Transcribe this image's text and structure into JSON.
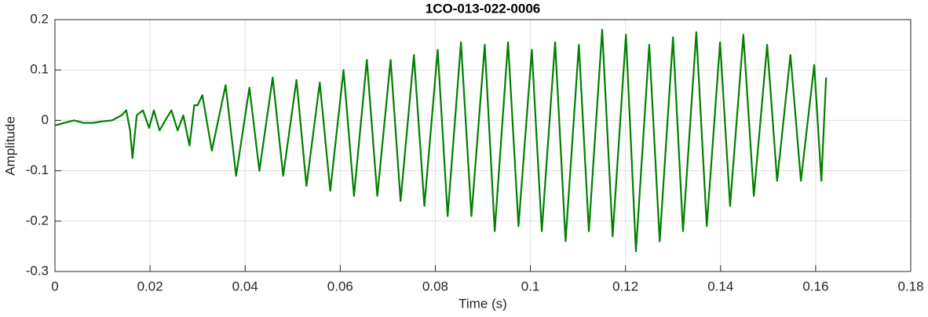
{
  "chart_data": {
    "type": "line",
    "title": "1CO-013-022-0006",
    "xlabel": "Time (s)",
    "ylabel": "Amplitude",
    "xlim": [
      0,
      0.18
    ],
    "xticks": [
      0,
      0.02,
      0.04,
      0.06,
      0.08,
      0.1,
      0.12,
      0.14,
      0.16,
      0.18
    ],
    "ylim": [
      -0.3,
      0.2
    ],
    "yticks": [
      -0.3,
      -0.2,
      -0.1,
      0,
      0.1,
      0.2
    ],
    "grid": true,
    "series": [
      {
        "color": "#008000",
        "x": [
          0,
          0.002,
          0.004,
          0.006,
          0.008,
          0.01,
          0.012,
          0.014,
          0.015,
          0.0158,
          0.0163,
          0.0172,
          0.0185,
          0.0198,
          0.0208,
          0.022,
          0.0232,
          0.0245,
          0.0258,
          0.027,
          0.0283,
          0.0293,
          0.03,
          0.031,
          0.033,
          0.0359,
          0.0381,
          0.0409,
          0.043,
          0.0458,
          0.048,
          0.0508,
          0.0529,
          0.0557,
          0.0579,
          0.0607,
          0.0629,
          0.0656,
          0.0678,
          0.0706,
          0.0727,
          0.0755,
          0.0777,
          0.0805,
          0.0826,
          0.0854,
          0.0876,
          0.0904,
          0.0925,
          0.0953,
          0.0975,
          0.1003,
          0.1024,
          0.1052,
          0.1074,
          0.1102,
          0.1123,
          0.1151,
          0.1173,
          0.1201,
          0.1222,
          0.125,
          0.1272,
          0.13,
          0.1321,
          0.1349,
          0.1371,
          0.1399,
          0.142,
          0.1448,
          0.147,
          0.1498,
          0.1519,
          0.1547,
          0.1569,
          0.1597,
          0.1612,
          0.1622
        ],
        "values": [
          -0.01,
          -0.005,
          0.0,
          -0.005,
          -0.005,
          -0.002,
          0.0,
          0.01,
          0.02,
          -0.02,
          -0.075,
          0.01,
          0.02,
          -0.015,
          0.02,
          -0.02,
          0.0,
          0.02,
          -0.02,
          0.01,
          -0.05,
          0.03,
          0.03,
          0.05,
          -0.06,
          0.07,
          -0.11,
          0.065,
          -0.1,
          0.085,
          -0.11,
          0.08,
          -0.13,
          0.075,
          -0.14,
          0.1,
          -0.15,
          0.12,
          -0.15,
          0.12,
          -0.16,
          0.13,
          -0.17,
          0.14,
          -0.19,
          0.155,
          -0.19,
          0.15,
          -0.22,
          0.155,
          -0.21,
          0.14,
          -0.22,
          0.155,
          -0.24,
          0.15,
          -0.22,
          0.18,
          -0.23,
          0.17,
          -0.26,
          0.15,
          -0.24,
          0.165,
          -0.22,
          0.175,
          -0.21,
          0.155,
          -0.17,
          0.17,
          -0.15,
          0.15,
          -0.12,
          0.13,
          -0.12,
          0.11,
          -0.12,
          0.085
        ]
      }
    ]
  }
}
